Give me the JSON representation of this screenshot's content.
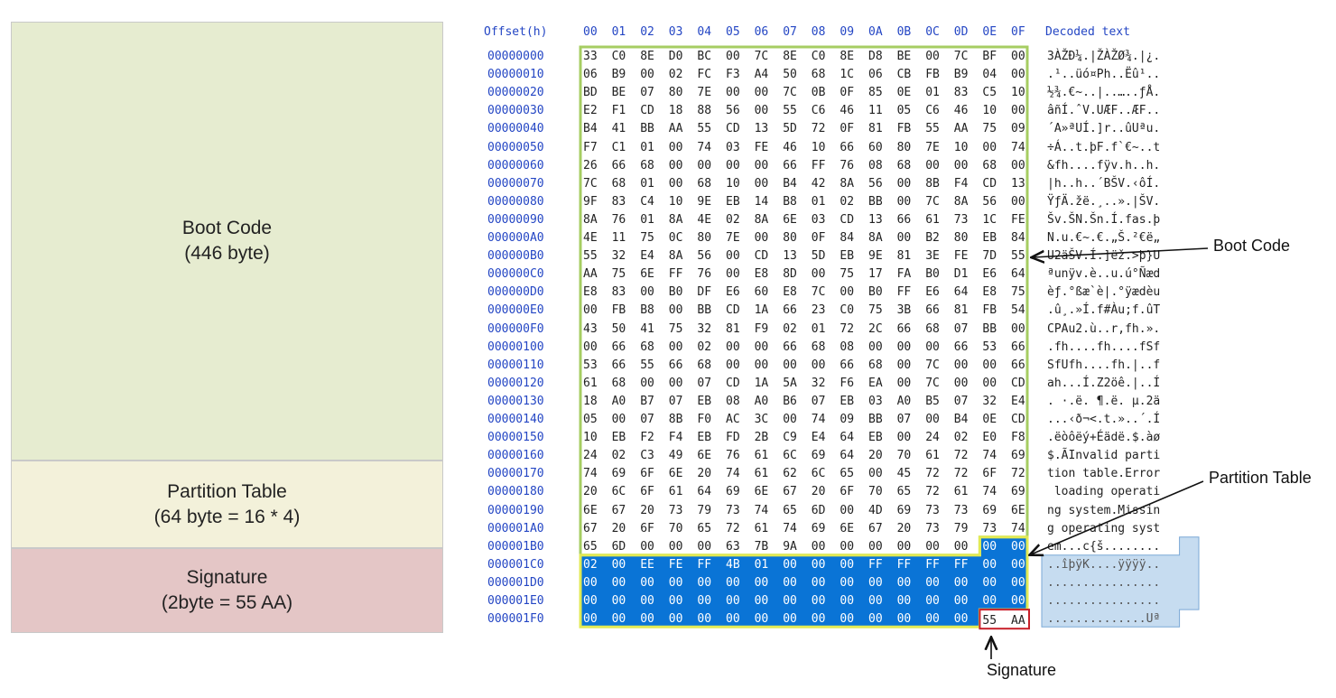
{
  "blocks": {
    "boot": {
      "title": "Boot Code",
      "subtitle": "(446 byte)",
      "color": "#e6ecd0"
    },
    "partition": {
      "title": "Partition Table",
      "subtitle": "(64 byte = 16 * 4)",
      "color": "#f3f1da"
    },
    "signature": {
      "title": "Signature",
      "subtitle": "(2byte = 55 AA)",
      "color": "#e4c6c6"
    }
  },
  "hex_view": {
    "offset_header": "Offset(h)",
    "column_headers": [
      "00",
      "01",
      "02",
      "03",
      "04",
      "05",
      "06",
      "07",
      "08",
      "09",
      "0A",
      "0B",
      "0C",
      "0D",
      "0E",
      "0F"
    ],
    "decoded_header": "Decoded text",
    "rows": [
      {
        "offset": "00000000",
        "bytes": [
          "33",
          "C0",
          "8E",
          "D0",
          "BC",
          "00",
          "7C",
          "8E",
          "C0",
          "8E",
          "D8",
          "BE",
          "00",
          "7C",
          "BF",
          "00"
        ],
        "text": "3ÀŽÐ¼.|ŽÀŽØ¾.|¿."
      },
      {
        "offset": "00000010",
        "bytes": [
          "06",
          "B9",
          "00",
          "02",
          "FC",
          "F3",
          "A4",
          "50",
          "68",
          "1C",
          "06",
          "CB",
          "FB",
          "B9",
          "04",
          "00"
        ],
        "text": ".¹..üó¤Ph..Ëû¹.."
      },
      {
        "offset": "00000020",
        "bytes": [
          "BD",
          "BE",
          "07",
          "80",
          "7E",
          "00",
          "00",
          "7C",
          "0B",
          "0F",
          "85",
          "0E",
          "01",
          "83",
          "C5",
          "10"
        ],
        "text": "½¾.€~..|..…..ƒÅ."
      },
      {
        "offset": "00000030",
        "bytes": [
          "E2",
          "F1",
          "CD",
          "18",
          "88",
          "56",
          "00",
          "55",
          "C6",
          "46",
          "11",
          "05",
          "C6",
          "46",
          "10",
          "00"
        ],
        "text": "âñÍ.ˆV.UÆF..ÆF.."
      },
      {
        "offset": "00000040",
        "bytes": [
          "B4",
          "41",
          "BB",
          "AA",
          "55",
          "CD",
          "13",
          "5D",
          "72",
          "0F",
          "81",
          "FB",
          "55",
          "AA",
          "75",
          "09"
        ],
        "text": "´A»ªUÍ.]r..ûUªu."
      },
      {
        "offset": "00000050",
        "bytes": [
          "F7",
          "C1",
          "01",
          "00",
          "74",
          "03",
          "FE",
          "46",
          "10",
          "66",
          "60",
          "80",
          "7E",
          "10",
          "00",
          "74"
        ],
        "text": "÷Á..t.þF.f`€~..t"
      },
      {
        "offset": "00000060",
        "bytes": [
          "26",
          "66",
          "68",
          "00",
          "00",
          "00",
          "00",
          "66",
          "FF",
          "76",
          "08",
          "68",
          "00",
          "00",
          "68",
          "00"
        ],
        "text": "&fh....fÿv.h..h."
      },
      {
        "offset": "00000070",
        "bytes": [
          "7C",
          "68",
          "01",
          "00",
          "68",
          "10",
          "00",
          "B4",
          "42",
          "8A",
          "56",
          "00",
          "8B",
          "F4",
          "CD",
          "13"
        ],
        "text": "|h..h..´BŠV.‹ôÍ."
      },
      {
        "offset": "00000080",
        "bytes": [
          "9F",
          "83",
          "C4",
          "10",
          "9E",
          "EB",
          "14",
          "B8",
          "01",
          "02",
          "BB",
          "00",
          "7C",
          "8A",
          "56",
          "00"
        ],
        "text": "ŸƒÄ.žë.¸..».|ŠV."
      },
      {
        "offset": "00000090",
        "bytes": [
          "8A",
          "76",
          "01",
          "8A",
          "4E",
          "02",
          "8A",
          "6E",
          "03",
          "CD",
          "13",
          "66",
          "61",
          "73",
          "1C",
          "FE"
        ],
        "text": "Šv.ŠN.Šn.Í.fas.þ"
      },
      {
        "offset": "000000A0",
        "bytes": [
          "4E",
          "11",
          "75",
          "0C",
          "80",
          "7E",
          "00",
          "80",
          "0F",
          "84",
          "8A",
          "00",
          "B2",
          "80",
          "EB",
          "84"
        ],
        "text": "N.u.€~.€.„Š.²€ë„"
      },
      {
        "offset": "000000B0",
        "bytes": [
          "55",
          "32",
          "E4",
          "8A",
          "56",
          "00",
          "CD",
          "13",
          "5D",
          "EB",
          "9E",
          "81",
          "3E",
          "FE",
          "7D",
          "55"
        ],
        "text": "U2äŠV.Í.]ëž.>þ}U"
      },
      {
        "offset": "000000C0",
        "bytes": [
          "AA",
          "75",
          "6E",
          "FF",
          "76",
          "00",
          "E8",
          "8D",
          "00",
          "75",
          "17",
          "FA",
          "B0",
          "D1",
          "E6",
          "64"
        ],
        "text": "ªunÿv.è..u.ú°Ñæd"
      },
      {
        "offset": "000000D0",
        "bytes": [
          "E8",
          "83",
          "00",
          "B0",
          "DF",
          "E6",
          "60",
          "E8",
          "7C",
          "00",
          "B0",
          "FF",
          "E6",
          "64",
          "E8",
          "75"
        ],
        "text": "èƒ.°ßæ`è|.°ÿædèu"
      },
      {
        "offset": "000000E0",
        "bytes": [
          "00",
          "FB",
          "B8",
          "00",
          "BB",
          "CD",
          "1A",
          "66",
          "23",
          "C0",
          "75",
          "3B",
          "66",
          "81",
          "FB",
          "54"
        ],
        "text": ".û¸.»Í.f#Àu;f.ûT"
      },
      {
        "offset": "000000F0",
        "bytes": [
          "43",
          "50",
          "41",
          "75",
          "32",
          "81",
          "F9",
          "02",
          "01",
          "72",
          "2C",
          "66",
          "68",
          "07",
          "BB",
          "00"
        ],
        "text": "CPAu2.ù..r,fh.»."
      },
      {
        "offset": "00000100",
        "bytes": [
          "00",
          "66",
          "68",
          "00",
          "02",
          "00",
          "00",
          "66",
          "68",
          "08",
          "00",
          "00",
          "00",
          "66",
          "53",
          "66"
        ],
        "text": ".fh....fh....fSf"
      },
      {
        "offset": "00000110",
        "bytes": [
          "53",
          "66",
          "55",
          "66",
          "68",
          "00",
          "00",
          "00",
          "00",
          "66",
          "68",
          "00",
          "7C",
          "00",
          "00",
          "66"
        ],
        "text": "SfUfh....fh.|..f"
      },
      {
        "offset": "00000120",
        "bytes": [
          "61",
          "68",
          "00",
          "00",
          "07",
          "CD",
          "1A",
          "5A",
          "32",
          "F6",
          "EA",
          "00",
          "7C",
          "00",
          "00",
          "CD"
        ],
        "text": "ah...Í.Z2öê.|..Í"
      },
      {
        "offset": "00000130",
        "bytes": [
          "18",
          "A0",
          "B7",
          "07",
          "EB",
          "08",
          "A0",
          "B6",
          "07",
          "EB",
          "03",
          "A0",
          "B5",
          "07",
          "32",
          "E4"
        ],
        "text": ". ·.ë. ¶.ë. µ.2ä"
      },
      {
        "offset": "00000140",
        "bytes": [
          "05",
          "00",
          "07",
          "8B",
          "F0",
          "AC",
          "3C",
          "00",
          "74",
          "09",
          "BB",
          "07",
          "00",
          "B4",
          "0E",
          "CD"
        ],
        "text": "...‹ð¬<.t.»..´.Í"
      },
      {
        "offset": "00000150",
        "bytes": [
          "10",
          "EB",
          "F2",
          "F4",
          "EB",
          "FD",
          "2B",
          "C9",
          "E4",
          "64",
          "EB",
          "00",
          "24",
          "02",
          "E0",
          "F8"
        ],
        "text": ".ëòôëý+Éädë.$.àø"
      },
      {
        "offset": "00000160",
        "bytes": [
          "24",
          "02",
          "C3",
          "49",
          "6E",
          "76",
          "61",
          "6C",
          "69",
          "64",
          "20",
          "70",
          "61",
          "72",
          "74",
          "69"
        ],
        "text": "$.ÃInvalid parti"
      },
      {
        "offset": "00000170",
        "bytes": [
          "74",
          "69",
          "6F",
          "6E",
          "20",
          "74",
          "61",
          "62",
          "6C",
          "65",
          "00",
          "45",
          "72",
          "72",
          "6F",
          "72"
        ],
        "text": "tion table.Error"
      },
      {
        "offset": "00000180",
        "bytes": [
          "20",
          "6C",
          "6F",
          "61",
          "64",
          "69",
          "6E",
          "67",
          "20",
          "6F",
          "70",
          "65",
          "72",
          "61",
          "74",
          "69"
        ],
        "text": " loading operati"
      },
      {
        "offset": "00000190",
        "bytes": [
          "6E",
          "67",
          "20",
          "73",
          "79",
          "73",
          "74",
          "65",
          "6D",
          "00",
          "4D",
          "69",
          "73",
          "73",
          "69",
          "6E"
        ],
        "text": "ng system.Missin"
      },
      {
        "offset": "000001A0",
        "bytes": [
          "67",
          "20",
          "6F",
          "70",
          "65",
          "72",
          "61",
          "74",
          "69",
          "6E",
          "67",
          "20",
          "73",
          "79",
          "73",
          "74"
        ],
        "text": "g operating syst"
      },
      {
        "offset": "000001B0",
        "bytes": [
          "65",
          "6D",
          "00",
          "00",
          "00",
          "63",
          "7B",
          "9A",
          "00",
          "00",
          "00",
          "00",
          "00",
          "00",
          "00",
          "00"
        ],
        "text": "em...c{š........"
      },
      {
        "offset": "000001C0",
        "bytes": [
          "02",
          "00",
          "EE",
          "FE",
          "FF",
          "4B",
          "01",
          "00",
          "00",
          "00",
          "FF",
          "FF",
          "FF",
          "FF",
          "00",
          "00"
        ],
        "text": "..îþÿK....ÿÿÿÿ.."
      },
      {
        "offset": "000001D0",
        "bytes": [
          "00",
          "00",
          "00",
          "00",
          "00",
          "00",
          "00",
          "00",
          "00",
          "00",
          "00",
          "00",
          "00",
          "00",
          "00",
          "00"
        ],
        "text": "................"
      },
      {
        "offset": "000001E0",
        "bytes": [
          "00",
          "00",
          "00",
          "00",
          "00",
          "00",
          "00",
          "00",
          "00",
          "00",
          "00",
          "00",
          "00",
          "00",
          "00",
          "00"
        ],
        "text": "................"
      },
      {
        "offset": "000001F0",
        "bytes": [
          "00",
          "00",
          "00",
          "00",
          "00",
          "00",
          "00",
          "00",
          "00",
          "00",
          "00",
          "00",
          "00",
          "00",
          "55",
          "AA"
        ],
        "text": "..............Uª"
      }
    ]
  },
  "callouts": {
    "boot": "Boot Code",
    "partition": "Partition Table",
    "signature": "Signature"
  },
  "colors": {
    "boot_outline": "#a6cd62",
    "partition_outline": "#e2ea54",
    "signature_outline": "#c8202a",
    "partition_fill": "#0a74d6",
    "decoded_fill": "#c6dcf0",
    "offset_text": "#2446c4"
  }
}
